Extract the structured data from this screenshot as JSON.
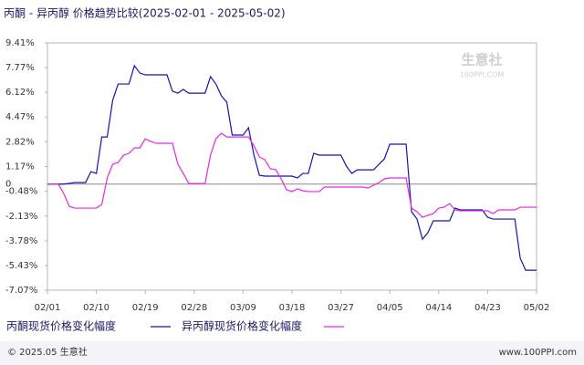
{
  "chart_data": {
    "type": "line",
    "title": "丙酮 - 异丙醇 价格趋势比较(2025-02-01 - 2025-05-02)",
    "watermark": [
      "生意社",
      "100PPI.COM"
    ],
    "footer_left": "© 2025.05 生意社",
    "footer_right": "www.100PPI.com",
    "x": [
      "02/01",
      "02/02",
      "02/03",
      "02/04",
      "02/05",
      "02/06",
      "02/07",
      "02/08",
      "02/09",
      "02/10",
      "02/11",
      "02/12",
      "02/13",
      "02/14",
      "02/15",
      "02/16",
      "02/17",
      "02/18",
      "02/19",
      "02/20",
      "02/21",
      "02/22",
      "02/23",
      "02/24",
      "02/25",
      "02/26",
      "02/27",
      "02/28",
      "03/01",
      "03/02",
      "03/03",
      "03/04",
      "03/05",
      "03/06",
      "03/07",
      "03/08",
      "03/09",
      "03/10",
      "03/11",
      "03/12",
      "03/13",
      "03/14",
      "03/15",
      "03/16",
      "03/17",
      "03/18",
      "03/19",
      "03/20",
      "03/21",
      "03/22",
      "03/23",
      "03/24",
      "03/25",
      "03/26",
      "03/27",
      "03/28",
      "03/29",
      "03/30",
      "03/31",
      "04/01",
      "04/02",
      "04/03",
      "04/04",
      "04/05",
      "04/06",
      "04/07",
      "04/08",
      "04/09",
      "04/10",
      "04/11",
      "04/12",
      "04/13",
      "04/14",
      "04/15",
      "04/16",
      "04/17",
      "04/18",
      "04/19",
      "04/20",
      "04/21",
      "04/22",
      "04/23",
      "04/24",
      "04/25",
      "04/26",
      "04/27",
      "04/28",
      "04/29",
      "04/30",
      "05/01",
      "05/02"
    ],
    "xticks": [
      "02/01",
      "02/10",
      "02/19",
      "02/28",
      "03/09",
      "03/18",
      "03/27",
      "04/05",
      "04/14",
      "04/23",
      "05/02"
    ],
    "series": [
      {
        "name": "丙酮现货价格变化幅度",
        "color": "#1414b4",
        "values": [
          0,
          0,
          0,
          0,
          0.05,
          0.1,
          0.1,
          0.1,
          0.83,
          0.71,
          3.14,
          3.14,
          5.58,
          6.67,
          6.67,
          6.67,
          7.89,
          7.4,
          7.28,
          7.28,
          7.28,
          7.28,
          7.28,
          6.19,
          6.06,
          6.31,
          6.06,
          6.06,
          6.06,
          6.06,
          7.16,
          6.67,
          5.88,
          5.46,
          3.27,
          3.27,
          3.27,
          3.75,
          1.93,
          0.59,
          0.53,
          0.53,
          0.53,
          0.53,
          0.53,
          0.53,
          0.41,
          0.71,
          0.71,
          2.05,
          1.93,
          1.93,
          1.93,
          1.93,
          1.93,
          1.2,
          0.71,
          0.95,
          0.95,
          0.95,
          0.95,
          1.32,
          1.68,
          2.66,
          2.66,
          2.66,
          2.66,
          -1.84,
          -2.33,
          -3.67,
          -3.24,
          -2.45,
          -2.45,
          -2.45,
          -2.45,
          -1.6,
          -1.72,
          -1.72,
          -1.72,
          -1.72,
          -1.72,
          -2.21,
          -2.33,
          -2.33,
          -2.33,
          -2.33,
          -2.33,
          -4.95,
          -5.74,
          -5.74,
          -5.74
        ]
      },
      {
        "name": "异丙醇现货价格变化幅度",
        "color": "#e628e6",
        "values": [
          0,
          0,
          0,
          -0.63,
          -1.48,
          -1.6,
          -1.6,
          -1.6,
          -1.6,
          -1.6,
          -1.36,
          0.41,
          1.32,
          1.44,
          1.93,
          2.05,
          2.41,
          2.41,
          3.02,
          2.84,
          2.72,
          2.72,
          2.72,
          2.72,
          1.32,
          0.71,
          0.04,
          0.04,
          0.04,
          0.04,
          1.93,
          3.02,
          3.39,
          3.14,
          3.14,
          3.14,
          3.14,
          3.14,
          2.54,
          1.81,
          1.63,
          1.02,
          0.96,
          0.35,
          -0.38,
          -0.5,
          -0.32,
          -0.44,
          -0.5,
          -0.5,
          -0.5,
          -0.2,
          -0.2,
          -0.2,
          -0.2,
          -0.2,
          -0.2,
          -0.2,
          -0.2,
          -0.26,
          -0.08,
          0.1,
          0.35,
          0.41,
          0.41,
          0.41,
          0.41,
          -1.6,
          -1.84,
          -2.21,
          -2.09,
          -1.97,
          -1.6,
          -1.54,
          -1.3,
          -1.72,
          -1.78,
          -1.78,
          -1.78,
          -1.78,
          -1.78,
          -1.78,
          -1.97,
          -1.72,
          -1.72,
          -1.72,
          -1.72,
          -1.54,
          -1.54,
          -1.54,
          -1.54
        ]
      }
    ],
    "ylim": [
      -7.07,
      9.41
    ],
    "yticks": [
      {
        "value": 9.41,
        "label": "9.41%"
      },
      {
        "value": 7.77,
        "label": "7.77%"
      },
      {
        "value": 6.12,
        "label": "6.12%"
      },
      {
        "value": 4.47,
        "label": "4.47%"
      },
      {
        "value": 2.82,
        "label": "2.82%"
      },
      {
        "value": 1.17,
        "label": "1.17%"
      },
      0,
      {
        "value": -0.48,
        "label": "-0.48%"
      },
      {
        "value": -2.13,
        "label": "-2.13%"
      },
      {
        "value": -3.78,
        "label": "-3.78%"
      },
      {
        "value": -5.43,
        "label": "-5.43%"
      },
      {
        "value": -7.07,
        "label": "-7.07%"
      }
    ],
    "grid": false
  }
}
